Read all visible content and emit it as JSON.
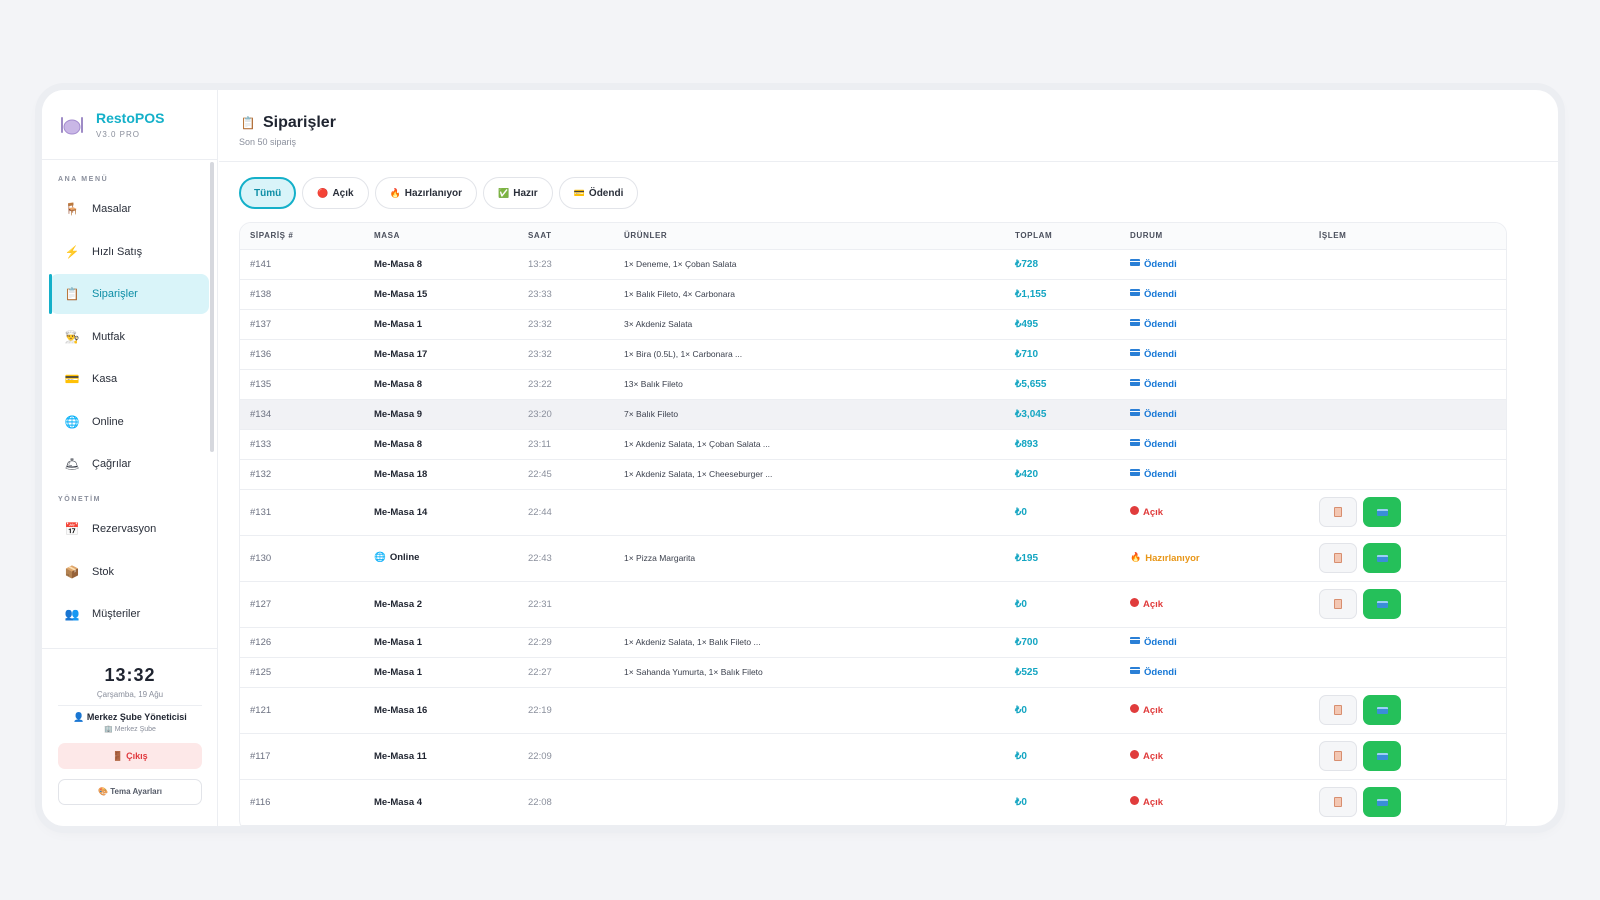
{
  "brand": {
    "name": "RestoPOS",
    "version": "V3.0 PRO",
    "logo_icon": "plate-cutlery-icon"
  },
  "sidebar": {
    "section_main": "ANA MENÜ",
    "main_items": [
      {
        "label": "Masalar",
        "icon": "🪑"
      },
      {
        "label": "Hızlı Satış",
        "icon": "⚡"
      },
      {
        "label": "Siparişler",
        "icon": "📋"
      },
      {
        "label": "Mutfak",
        "icon": "👨‍🍳"
      },
      {
        "label": "Kasa",
        "icon": "💳"
      },
      {
        "label": "Online",
        "icon": "🌐"
      },
      {
        "label": "Çağrılar",
        "icon": "🛎"
      }
    ],
    "section_admin": "YÖNETİM",
    "admin_items": [
      {
        "label": "Rezervasyon",
        "icon": "📅"
      },
      {
        "label": "Stok",
        "icon": "📦"
      },
      {
        "label": "Müşteriler",
        "icon": "👥"
      }
    ],
    "clock": "13:32",
    "date": "Çarşamba, 19 Ağu",
    "user": "👤 Merkez Şube Yöneticisi",
    "branch": "🏢 Merkez Şube",
    "logout": "🚪 Çıkış",
    "theme": "🎨 Tema Ayarları"
  },
  "header": {
    "title": "Siparişler",
    "title_icon": "📋",
    "subtitle": "Son 50 sipariş"
  },
  "filters": [
    {
      "label": "Tümü",
      "icon": ""
    },
    {
      "label": "Açık",
      "icon": "🔴"
    },
    {
      "label": "Hazırlanıyor",
      "icon": "🔥"
    },
    {
      "label": "Hazır",
      "icon": "✅"
    },
    {
      "label": "Ödendi",
      "icon": "💳"
    }
  ],
  "table": {
    "columns": [
      "SİPARİŞ #",
      "MASA",
      "SAAT",
      "ÜRÜNLER",
      "TOPLAM",
      "DURUM",
      "İŞLEM"
    ],
    "rows": [
      {
        "id": "#141",
        "masa": "Me-Masa 8",
        "saat": "13:23",
        "urunler": "1× Deneme, 1× Çoban Salata",
        "toplam": "₺728",
        "durum": "Ödendi",
        "status": "paid"
      },
      {
        "id": "#138",
        "masa": "Me-Masa 15",
        "saat": "23:33",
        "urunler": "1× Balık Fileto, 4× Carbonara",
        "toplam": "₺1,155",
        "durum": "Ödendi",
        "status": "paid"
      },
      {
        "id": "#137",
        "masa": "Me-Masa 1",
        "saat": "23:32",
        "urunler": "3× Akdeniz Salata",
        "toplam": "₺495",
        "durum": "Ödendi",
        "status": "paid"
      },
      {
        "id": "#136",
        "masa": "Me-Masa 17",
        "saat": "23:32",
        "urunler": "1× Bira (0.5L), 1× Carbonara ...",
        "toplam": "₺710",
        "durum": "Ödendi",
        "status": "paid"
      },
      {
        "id": "#135",
        "masa": "Me-Masa 8",
        "saat": "23:22",
        "urunler": "13× Balık Fileto",
        "toplam": "₺5,655",
        "durum": "Ödendi",
        "status": "paid"
      },
      {
        "id": "#134",
        "masa": "Me-Masa 9",
        "saat": "23:20",
        "urunler": "7× Balık Fileto",
        "toplam": "₺3,045",
        "durum": "Ödendi",
        "status": "paid"
      },
      {
        "id": "#133",
        "masa": "Me-Masa 8",
        "saat": "23:11",
        "urunler": "1× Akdeniz Salata, 1× Çoban Salata ...",
        "toplam": "₺893",
        "durum": "Ödendi",
        "status": "paid"
      },
      {
        "id": "#132",
        "masa": "Me-Masa 18",
        "saat": "22:45",
        "urunler": "1× Akdeniz Salata, 1× Cheeseburger ...",
        "toplam": "₺420",
        "durum": "Ödendi",
        "status": "paid"
      },
      {
        "id": "#131",
        "masa": "Me-Masa 14",
        "saat": "22:44",
        "urunler": "",
        "toplam": "₺0",
        "durum": "Açık",
        "status": "open"
      },
      {
        "id": "#130",
        "masa": "Online",
        "saat": "22:43",
        "urunler": "1× Pizza Margarita",
        "toplam": "₺195",
        "durum": "Hazırlanıyor",
        "status": "prep"
      },
      {
        "id": "#127",
        "masa": "Me-Masa 2",
        "saat": "22:31",
        "urunler": "",
        "toplam": "₺0",
        "durum": "Açık",
        "status": "open"
      },
      {
        "id": "#126",
        "masa": "Me-Masa 1",
        "saat": "22:29",
        "urunler": "1× Akdeniz Salata, 1× Balık Fileto ...",
        "toplam": "₺700",
        "durum": "Ödendi",
        "status": "paid"
      },
      {
        "id": "#125",
        "masa": "Me-Masa 1",
        "saat": "22:27",
        "urunler": "1× Sahanda Yumurta, 1× Balık Fileto",
        "toplam": "₺525",
        "durum": "Ödendi",
        "status": "paid"
      },
      {
        "id": "#121",
        "masa": "Me-Masa 16",
        "saat": "22:19",
        "urunler": "",
        "toplam": "₺0",
        "durum": "Açık",
        "status": "open"
      },
      {
        "id": "#117",
        "masa": "Me-Masa 11",
        "saat": "22:09",
        "urunler": "",
        "toplam": "₺0",
        "durum": "Açık",
        "status": "open"
      },
      {
        "id": "#116",
        "masa": "Me-Masa 4",
        "saat": "22:08",
        "urunler": "",
        "toplam": "₺0",
        "durum": "Açık",
        "status": "open"
      }
    ]
  },
  "colors": {
    "accent": "#14b0c9",
    "paid": "#1577d6",
    "open": "#e03c3c",
    "prep": "#e89617",
    "green": "#25c05a"
  }
}
